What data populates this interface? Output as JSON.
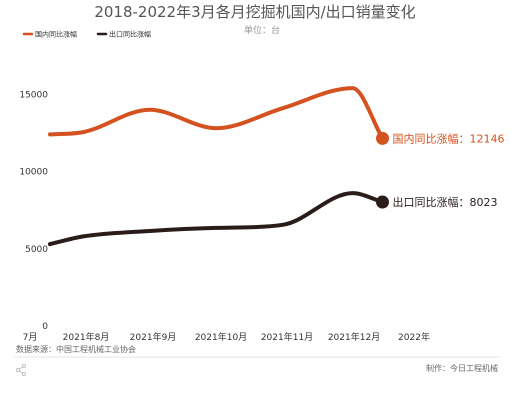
{
  "chart_data": {
    "type": "line",
    "title": "2018-2022年3月各月挖掘机国内/出口销量变化",
    "subtitle": "单位：台",
    "x_tick_labels": [
      "7月",
      "2021年8月",
      "2021年9月",
      "2021年10月",
      "2021年11月",
      "2021年12月",
      "2022年"
    ],
    "x": [
      0,
      0.5,
      1.5,
      2.5,
      3.5,
      4.55,
      5
    ],
    "ylim": [
      0,
      17000
    ],
    "yticks": [
      0,
      5000,
      10000,
      15000
    ],
    "grid": false,
    "legend_position": "top-left",
    "series": [
      {
        "name": "国内同比涨幅",
        "color": "#d4521f",
        "values": [
          12400,
          12550,
          14000,
          12800,
          14100,
          15400,
          12146
        ],
        "end_label": "国内同比涨幅：12146"
      },
      {
        "name": "出口同比涨幅",
        "color": "#2b1c1c",
        "values": [
          5300,
          5800,
          6150,
          6350,
          6550,
          8600,
          8023
        ],
        "end_label": "出口同比涨幅：8023"
      }
    ]
  },
  "source": "数据来源：中国工程机械工业协会",
  "footer": "制作：今日工程机械",
  "icon": "share-icon"
}
